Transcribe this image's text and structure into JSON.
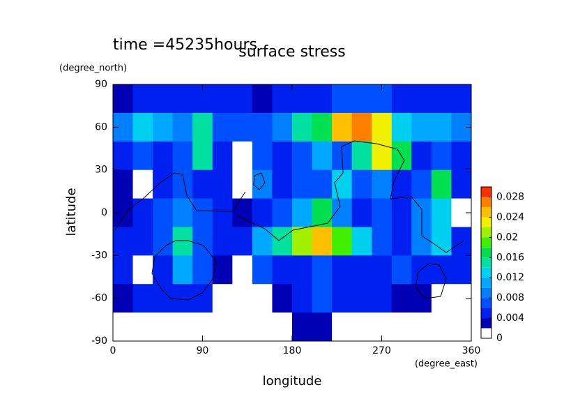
{
  "chart_data": {
    "type": "contour",
    "subtitle": "time =45235hours",
    "title": "surface stress",
    "x_label": "longitude",
    "x_unit": "(degree_east)",
    "y_label": "latitude",
    "y_unit": "(degree_north)",
    "xlim": [
      0,
      360
    ],
    "ylim": [
      -90,
      90
    ],
    "xticks": [
      0,
      90,
      180,
      270,
      360
    ],
    "yticks": [
      -90,
      -60,
      -30,
      0,
      30,
      60,
      90
    ],
    "x": [
      10,
      30,
      50,
      70,
      90,
      110,
      130,
      150,
      170,
      190,
      210,
      230,
      250,
      270,
      290,
      310,
      330,
      350
    ],
    "y": [
      80,
      60,
      40,
      20,
      0,
      -20,
      -40,
      -60,
      -80
    ],
    "z": [
      [
        0.002,
        0.004,
        0.004,
        0.004,
        0.004,
        0.004,
        0.004,
        0.002,
        0.004,
        0.004,
        0.004,
        0.006,
        0.006,
        0.006,
        0.004,
        0.004,
        0.004,
        0.004
      ],
      [
        0.008,
        0.012,
        0.01,
        0.008,
        0.014,
        0.006,
        0.006,
        0.006,
        0.008,
        0.014,
        0.016,
        0.024,
        0.026,
        0.022,
        0.012,
        0.01,
        0.01,
        0.008
      ],
      [
        0.004,
        0.006,
        0.004,
        0.006,
        0.014,
        0.004,
        0,
        0.006,
        0.004,
        0.006,
        0.01,
        0.006,
        0.014,
        0.022,
        0.016,
        0.004,
        0.006,
        0.004
      ],
      [
        0.002,
        0,
        0.004,
        0.006,
        0.004,
        0.004,
        0,
        0.008,
        0.004,
        0.006,
        0.006,
        0.012,
        0.006,
        0.008,
        0.004,
        0.006,
        0.016,
        0.004
      ],
      [
        0.002,
        0.004,
        0.006,
        0.008,
        0.006,
        0.004,
        0.002,
        0.004,
        0.006,
        0.01,
        0.016,
        0.008,
        0.004,
        0.006,
        0.004,
        0.008,
        0.012,
        0
      ],
      [
        0.004,
        0.004,
        0.006,
        0.014,
        0.006,
        0.004,
        0.004,
        0.01,
        0.014,
        0.02,
        0.024,
        0.018,
        0.012,
        0.006,
        0.004,
        0.008,
        0.012,
        0.004
      ],
      [
        0.004,
        0,
        0.004,
        0.01,
        0.006,
        0.002,
        0,
        0.006,
        0.004,
        0.004,
        0.006,
        0.004,
        0.004,
        0.004,
        0.006,
        0.004,
        0.004,
        0.004
      ],
      [
        0.002,
        0.004,
        0.004,
        0.004,
        0.004,
        0,
        0,
        0,
        0.002,
        0.004,
        0.006,
        0.004,
        0.004,
        0.004,
        0.002,
        0.002,
        0,
        0
      ],
      [
        0,
        0,
        0,
        0,
        0,
        0,
        0,
        0,
        0,
        0.002,
        0.002,
        0,
        0,
        0,
        0,
        0,
        0,
        0
      ]
    ],
    "levels": [
      0,
      0.002,
      0.004,
      0.006,
      0.008,
      0.01,
      0.012,
      0.014,
      0.016,
      0.018,
      0.02,
      0.022,
      0.024,
      0.026,
      0.028,
      0.03
    ],
    "colors": [
      "#ffffff",
      "#0000b4",
      "#0020f0",
      "#0050ff",
      "#0080ff",
      "#00a8ff",
      "#00d0f0",
      "#00e0a0",
      "#00e050",
      "#40f000",
      "#a0f000",
      "#f0f000",
      "#ffc000",
      "#ff8000",
      "#ff3000"
    ],
    "colorbar_ticks": [
      0,
      0.004,
      0.008,
      0.012,
      0.016,
      0.02,
      0.024,
      0.028
    ]
  }
}
